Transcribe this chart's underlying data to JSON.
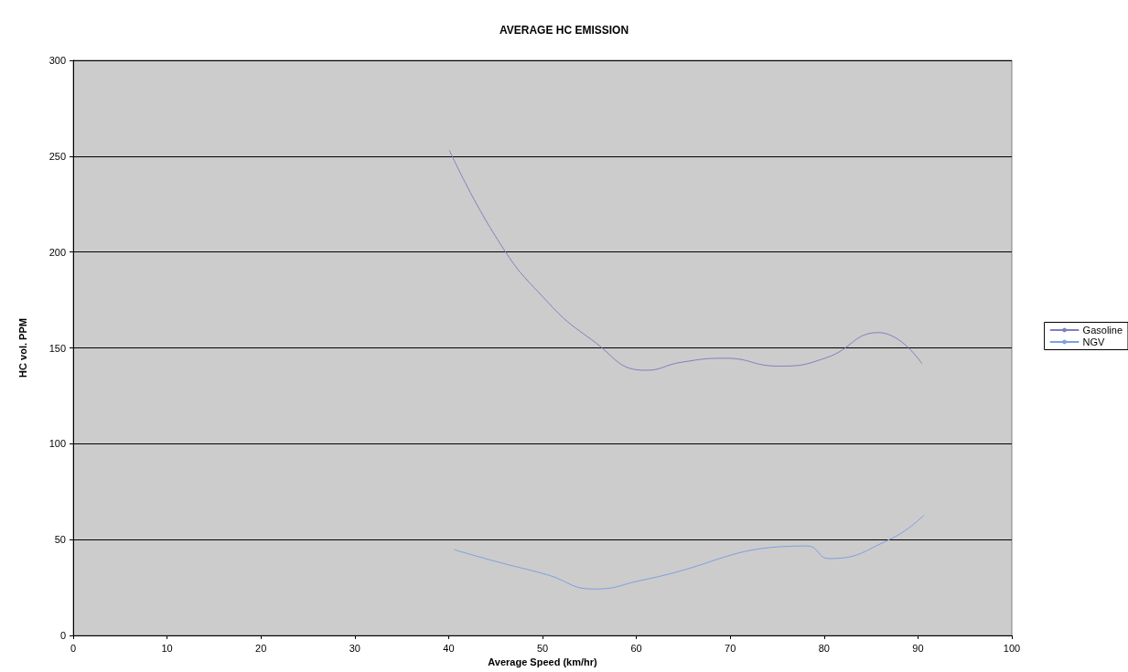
{
  "chart_data": {
    "type": "line",
    "title": "AVERAGE HC EMISSION",
    "xlabel": "Average Speed (km/hr)",
    "ylabel": "HC vol. PPM",
    "xlim": [
      0,
      100
    ],
    "xticks": [
      0,
      10,
      20,
      30,
      40,
      50,
      60,
      70,
      80,
      90,
      100
    ],
    "ylim": [
      0,
      300
    ],
    "yticks": [
      0,
      50,
      100,
      150,
      200,
      250,
      300
    ],
    "grid": "y",
    "legend": "right",
    "line_style": "solid",
    "series": [
      {
        "name": "Gasoline",
        "color": "#8080c0",
        "x": [
          40.1,
          45.2,
          50,
          55.2,
          61,
          64.8,
          69.5,
          75.1,
          80.2,
          85.8,
          90.4
        ],
        "values": [
          252.9,
          206.6,
          176.8,
          154.4,
          138.3,
          142.5,
          144.6,
          140.5,
          144.8,
          158,
          141.9
        ]
      },
      {
        "name": "NGV",
        "color": "#7f9fe0",
        "x": [
          40.6,
          45.4,
          50.4,
          55.5,
          60.6,
          78.2,
          80.5,
          87,
          90.6
        ],
        "values": [
          44.7,
          38.1,
          31.8,
          24.2,
          28.8,
          46.7,
          40.1,
          50.1,
          62.6
        ]
      }
    ]
  }
}
